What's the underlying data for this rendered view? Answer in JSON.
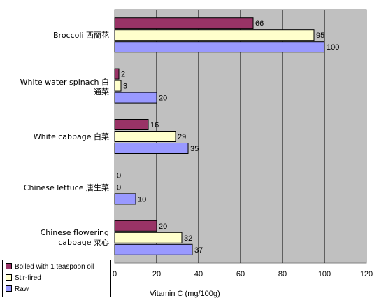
{
  "chart_data": {
    "type": "bar",
    "orientation": "horizontal",
    "categories": [
      "Broccoli 西蘭花",
      "White water spinach 白通菜",
      "White cabbage 白菜",
      "Chinese lettuce 唐生菜",
      "Chinese flowering cabbage 菜心"
    ],
    "series": [
      {
        "name": "Boiled with 1 teaspoon oil",
        "color": "#993366",
        "values": [
          66,
          2,
          16,
          0,
          20
        ]
      },
      {
        "name": "Stir-fired",
        "color": "#ffffcc",
        "values": [
          95,
          3,
          29,
          0,
          32
        ]
      },
      {
        "name": "Raw",
        "color": "#9999ff",
        "values": [
          100,
          20,
          35,
          10,
          37
        ]
      }
    ],
    "xlabel": "Vitamin C (mg/100g)",
    "xlim": [
      0,
      120
    ],
    "xticks": [
      "0",
      "20",
      "40",
      "60",
      "80",
      "100",
      "120"
    ],
    "grid": "vertical",
    "plot_background": "#c0c0c0",
    "legend_position": "bottom-left"
  }
}
